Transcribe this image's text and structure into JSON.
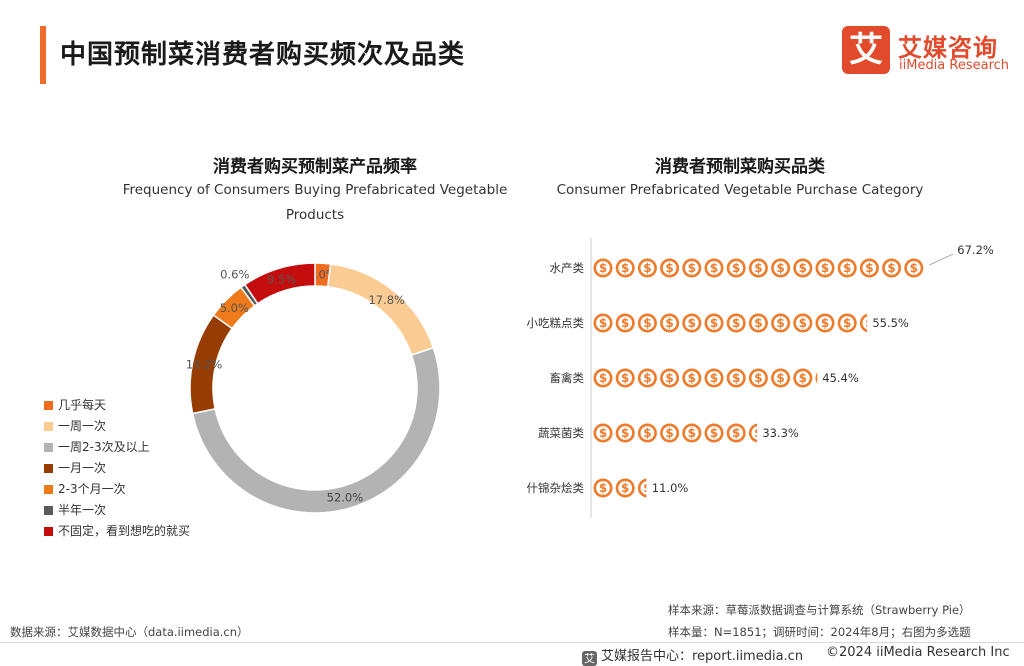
{
  "header": {
    "title": "中国预制菜消费者购买频次及品类"
  },
  "logo": {
    "mark": "艾",
    "name_cn": "艾媒咨询",
    "name_en": "iiMedia Research"
  },
  "chart_data": [
    {
      "type": "pie",
      "title": "消费者购买预制菜产品频率",
      "subtitle": "Frequency of Consumers Buying Prefabricated Vegetable Products",
      "legend_position": "left",
      "start": "top, clockwise",
      "slices": [
        {
          "label": "几乎每天",
          "value": 2.0,
          "value_label": "2.0%",
          "color": "#ef6b1f"
        },
        {
          "label": "一周一次",
          "value": 17.8,
          "value_label": "17.8%",
          "color": "#fbcb94"
        },
        {
          "label": "一周2-3次及以上",
          "value": 52.0,
          "value_label": "52.0%",
          "color": "#b3b3b3"
        },
        {
          "label": "一月一次",
          "value": 13.2,
          "value_label": "13.2%",
          "color": "#973d03"
        },
        {
          "label": "2-3个月一次",
          "value": 5.0,
          "value_label": "5.0%",
          "color": "#ef7a1b"
        },
        {
          "label": "半年一次",
          "value": 0.6,
          "value_label": "0.6%",
          "color": "#5a5a5a"
        },
        {
          "label": "不固定，看到想吃的就买",
          "value": 9.5,
          "value_label": "9.5%",
          "color": "#c50d0d"
        }
      ]
    },
    {
      "type": "bar",
      "orientation": "horizontal",
      "style": "pictograph (coin icons)",
      "title": "消费者预制菜购买品类",
      "subtitle": "Consumer Prefabricated Vegetable Purchase Category",
      "categories": [
        "水产类",
        "小吃糕点类",
        "畜禽类",
        "蔬菜菌类",
        "什锦杂烩类"
      ],
      "values": [
        67.2,
        55.5,
        45.4,
        33.3,
        11.0
      ],
      "value_labels": [
        "67.2%",
        "55.5%",
        "45.4%",
        "33.3%",
        "11.0%"
      ],
      "icon_color": "#ef7a2a",
      "icon": "dollar-coin-icon"
    }
  ],
  "notes": {
    "source_right": "样本来源：草莓派数据调查与计算系统（Strawberry Pie）",
    "sample": "样本量：N=1851；调研时间：2024年8月；右图为多选题",
    "source_left": "数据来源：艾媒数据中心（data.iimedia.cn）"
  },
  "footer": {
    "icon": "艾",
    "left": "艾媒报告中心：report.iimedia.cn",
    "right": "©2024  iiMedia Research Inc"
  }
}
